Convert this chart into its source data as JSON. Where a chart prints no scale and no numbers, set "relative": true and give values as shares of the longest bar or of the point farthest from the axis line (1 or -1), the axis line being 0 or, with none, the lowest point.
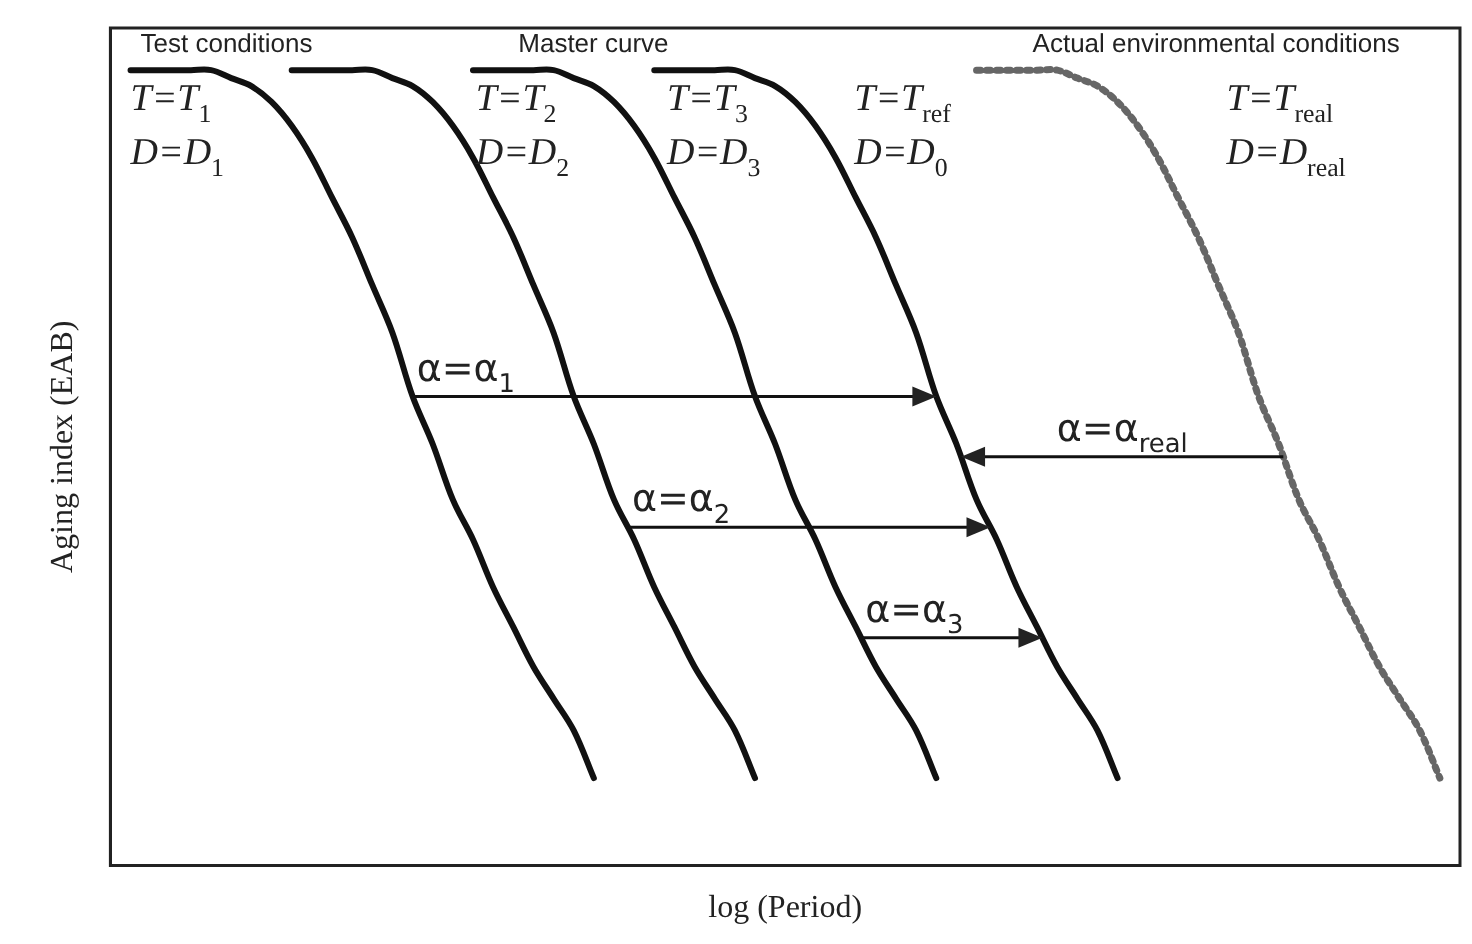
{
  "chart_data": {
    "type": "line",
    "relative": true,
    "xlabel": "log (Period)",
    "ylabel": "Aging index (EAB)",
    "tick_labels": false,
    "grid": false,
    "legend": false,
    "marker": "none",
    "line_style": "solid",
    "categories": [
      null,
      null,
      null,
      null,
      null,
      null,
      null,
      null,
      null,
      null,
      null,
      null,
      null,
      null,
      null,
      null,
      null,
      null,
      null,
      null,
      null,
      null,
      null,
      null,
      null,
      null,
      null,
      null,
      null,
      null,
      null,
      null,
      null,
      null,
      null,
      null,
      null,
      null,
      null,
      null,
      null,
      null,
      null,
      null,
      null,
      null,
      null,
      null,
      null,
      null,
      null,
      null,
      null,
      null,
      null,
      null,
      null,
      null,
      null,
      null,
      null,
      null,
      null,
      null,
      null,
      null,
      null,
      null
    ],
    "series": [
      {
        "name": "Test conditions",
        "color": "#111111",
        "values": [
          null,
          1,
          1,
          1,
          1,
          1,
          0.99,
          0.98,
          0.96,
          0.93,
          0.89,
          0.84,
          0.79,
          0.73,
          0.67,
          0.59,
          0.53,
          0.46,
          0.41,
          0.35,
          0.3,
          0.25,
          0.21,
          0.17,
          0.11,
          null,
          null,
          null,
          null,
          null,
          null,
          null,
          null,
          null,
          null,
          null,
          null,
          null,
          null,
          null,
          null,
          null,
          null,
          null,
          null,
          null,
          null,
          null,
          null,
          null,
          null,
          null,
          null,
          null,
          null,
          null,
          null,
          null,
          null,
          null,
          null,
          null,
          null,
          null,
          null,
          null,
          null,
          null
        ]
      },
      {
        "color": "#111111",
        "values": [
          null,
          null,
          null,
          null,
          null,
          null,
          null,
          null,
          null,
          1,
          1,
          1,
          1,
          1,
          0.99,
          0.98,
          0.96,
          0.93,
          0.89,
          0.84,
          0.79,
          0.73,
          0.67,
          0.59,
          0.53,
          0.46,
          0.41,
          0.35,
          0.3,
          0.25,
          0.21,
          0.17,
          0.11,
          null,
          null,
          null,
          null,
          null,
          null,
          null,
          null,
          null,
          null,
          null,
          null,
          null,
          null,
          null,
          null,
          null,
          null,
          null,
          null,
          null,
          null,
          null,
          null,
          null,
          null,
          null,
          null,
          null,
          null,
          null,
          null,
          null,
          null,
          null
        ]
      },
      {
        "color": "#111111",
        "values": [
          null,
          null,
          null,
          null,
          null,
          null,
          null,
          null,
          null,
          null,
          null,
          null,
          null,
          null,
          null,
          null,
          null,
          null,
          1,
          1,
          1,
          1,
          1,
          0.99,
          0.98,
          0.96,
          0.93,
          0.89,
          0.84,
          0.79,
          0.73,
          0.67,
          0.59,
          0.53,
          0.46,
          0.41,
          0.35,
          0.3,
          0.25,
          0.21,
          0.17,
          0.11,
          null,
          null,
          null,
          null,
          null,
          null,
          null,
          null,
          null,
          null,
          null,
          null,
          null,
          null,
          null,
          null,
          null,
          null,
          null,
          null,
          null,
          null,
          null,
          null,
          null,
          null
        ]
      },
      {
        "name": "Master curve",
        "color": "#111111",
        "values": [
          null,
          null,
          null,
          null,
          null,
          null,
          null,
          null,
          null,
          null,
          null,
          null,
          null,
          null,
          null,
          null,
          null,
          null,
          null,
          null,
          null,
          null,
          null,
          null,
          null,
          null,
          null,
          1,
          1,
          1,
          1,
          1,
          0.99,
          0.98,
          0.96,
          0.93,
          0.89,
          0.84,
          0.79,
          0.73,
          0.67,
          0.59,
          0.53,
          0.46,
          0.41,
          0.35,
          0.3,
          0.25,
          0.21,
          0.17,
          0.11,
          null,
          null,
          null,
          null,
          null,
          null,
          null,
          null,
          null,
          null,
          null,
          null,
          null,
          null,
          null,
          null,
          null
        ]
      },
      {
        "name": "Actual environmental conditions",
        "color": "#666666",
        "line_style": "dotted",
        "values": [
          null,
          null,
          null,
          null,
          null,
          null,
          null,
          null,
          null,
          null,
          null,
          null,
          null,
          null,
          null,
          null,
          null,
          null,
          null,
          null,
          null,
          null,
          null,
          null,
          null,
          null,
          null,
          null,
          null,
          null,
          null,
          null,
          null,
          null,
          null,
          null,
          null,
          null,
          null,
          null,
          null,
          null,
          null,
          1,
          1,
          1,
          1,
          1,
          0.99,
          0.98,
          0.96,
          0.93,
          0.89,
          0.84,
          0.79,
          0.73,
          0.67,
          0.59,
          0.53,
          0.46,
          0.41,
          0.35,
          0.3,
          0.25,
          0.21,
          0.17,
          0.11,
          null
        ]
      }
    ],
    "annotations": [
      "T=T$_{1}$",
      "D=D$_{1}$",
      "T=T$_{2}$",
      "D=D$_{2}$",
      "T=T$_{3}$",
      "D=D$_{3}$",
      "T=T$_{ref}$",
      "D=D$_{0}$",
      "T=T$_{real}$",
      "D=D$_{real}$",
      "α=α$_{1}$",
      "α=α$_{2}$",
      "α=α$_{3}$",
      "α=α$_{real}$"
    ]
  }
}
